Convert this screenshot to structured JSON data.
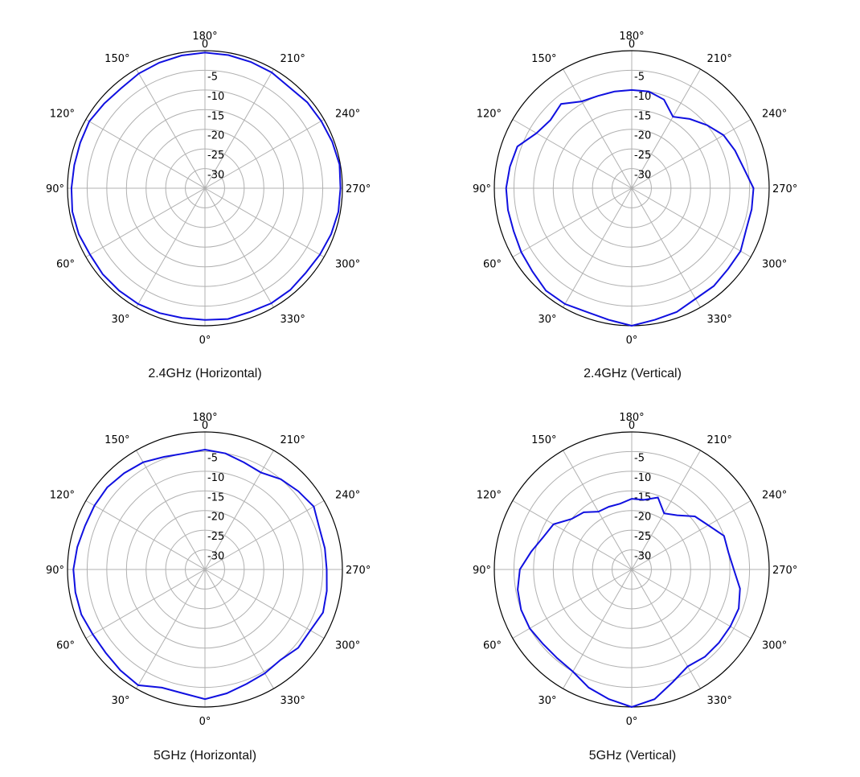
{
  "chart_data": [
    {
      "type": "polar",
      "title": "2.4GHz (Horizontal)",
      "angle_unit": "deg",
      "zero_direction": "bottom",
      "angle_direction": "clockwise",
      "r_scale_labels": [
        "0",
        "-5",
        "-10",
        "-15",
        "-20",
        "-25",
        "-30"
      ],
      "r_min": -35,
      "r_max": 0,
      "angle_ticks": [
        "0°",
        "30°",
        "60°",
        "90°",
        "120°",
        "150°",
        "180°",
        "210°",
        "240°",
        "270°",
        "300°",
        "330°"
      ],
      "grid": true,
      "line_color": "#1010e0",
      "series": [
        {
          "angles": [
            0,
            10,
            20,
            30,
            40,
            50,
            60,
            70,
            80,
            90,
            100,
            110,
            120,
            130,
            140,
            150,
            160,
            170,
            180,
            190,
            200,
            210,
            220,
            230,
            240,
            250,
            260,
            270,
            280,
            290,
            300,
            310,
            320,
            330,
            340,
            350
          ],
          "values": [
            -1.5,
            -1.5,
            -1.2,
            -1.0,
            -1.0,
            -1.0,
            -1.2,
            -0.8,
            -0.7,
            -1.0,
            -1.2,
            -1.2,
            -1.0,
            -1.5,
            -1.8,
            -1.3,
            -1.0,
            -0.7,
            -0.5,
            -0.6,
            -0.8,
            -1.0,
            -1.5,
            -1.0,
            -0.8,
            -0.5,
            -0.2,
            -0.5,
            -0.5,
            -0.8,
            -1.2,
            -1.5,
            -1.2,
            -1.2,
            -1.5,
            -1.2
          ]
        }
      ]
    },
    {
      "type": "polar",
      "title": "2.4GHz (Vertical)",
      "angle_unit": "deg",
      "zero_direction": "bottom",
      "angle_direction": "clockwise",
      "r_scale_labels": [
        "0",
        "-5",
        "-10",
        "-15",
        "-20",
        "-25",
        "-30"
      ],
      "r_min": -35,
      "r_max": 0,
      "angle_ticks": [
        "0°",
        "30°",
        "60°",
        "90°",
        "120°",
        "150°",
        "180°",
        "210°",
        "240°",
        "270°",
        "300°",
        "330°"
      ],
      "grid": true,
      "line_color": "#1010e0",
      "series": [
        {
          "angles": [
            0,
            10,
            20,
            30,
            40,
            50,
            60,
            70,
            80,
            90,
            100,
            110,
            120,
            130,
            140,
            150,
            160,
            170,
            180,
            190,
            200,
            210,
            220,
            230,
            240,
            250,
            260,
            270,
            280,
            290,
            300,
            310,
            320,
            330,
            340,
            350
          ],
          "values": [
            0,
            -1,
            -1.5,
            -1,
            -1,
            -2,
            -2.5,
            -3,
            -3,
            -3,
            -3.5,
            -4,
            -7,
            -8,
            -7,
            -9.5,
            -10,
            -10,
            -10,
            -10,
            -11,
            -14,
            -12,
            -10,
            -8,
            -7,
            -6,
            -4,
            -4,
            -4,
            -3,
            -3,
            -2.5,
            -2.5,
            -1.5,
            -1
          ]
        }
      ]
    },
    {
      "type": "polar",
      "title": "5GHz (Horizontal)",
      "angle_unit": "deg",
      "zero_direction": "bottom",
      "angle_direction": "clockwise",
      "r_scale_labels": [
        "0",
        "-5",
        "-10",
        "-15",
        "-20",
        "-25",
        "-30"
      ],
      "r_min": -35,
      "r_max": 0,
      "angle_ticks": [
        "0°",
        "30°",
        "60°",
        "90°",
        "120°",
        "150°",
        "180°",
        "210°",
        "240°",
        "270°",
        "300°",
        "330°"
      ],
      "grid": true,
      "line_color": "#1010e0",
      "series": [
        {
          "angles": [
            0,
            10,
            20,
            30,
            40,
            50,
            60,
            70,
            80,
            90,
            100,
            110,
            120,
            130,
            140,
            150,
            160,
            170,
            180,
            190,
            200,
            210,
            220,
            230,
            240,
            250,
            260,
            270,
            280,
            290,
            300,
            310,
            320,
            330,
            340,
            350
          ],
          "values": [
            -2,
            -3,
            -3,
            -1,
            -1.5,
            -2,
            -2,
            -1.5,
            -1.5,
            -1.5,
            -2,
            -2.5,
            -2.5,
            -2.5,
            -3,
            -3.5,
            -4.5,
            -5,
            -4.5,
            -5,
            -6,
            -6.5,
            -5,
            -4,
            -3,
            -4,
            -4,
            -4,
            -3.5,
            -3,
            -4,
            -4,
            -5,
            -4.5,
            -4,
            -3
          ]
        }
      ]
    },
    {
      "type": "polar",
      "title": "5GHz (Vertical)",
      "angle_unit": "deg",
      "zero_direction": "bottom",
      "angle_direction": "clockwise",
      "r_scale_labels": [
        "0",
        "-5",
        "-10",
        "-15",
        "-20",
        "-25",
        "-30"
      ],
      "r_min": -35,
      "r_max": 0,
      "angle_ticks": [
        "0°",
        "30°",
        "60°",
        "90°",
        "120°",
        "150°",
        "180°",
        "210°",
        "240°",
        "270°",
        "300°",
        "330°"
      ],
      "grid": true,
      "line_color": "#1010e0",
      "series": [
        {
          "angles": [
            0,
            10,
            20,
            30,
            40,
            50,
            60,
            70,
            80,
            90,
            100,
            110,
            120,
            130,
            140,
            150,
            160,
            170,
            180,
            190,
            200,
            210,
            220,
            230,
            240,
            250,
            260,
            270,
            280,
            290,
            300,
            310,
            320,
            330,
            340,
            350
          ],
          "values": [
            0,
            -1.5,
            -3,
            -5,
            -5.5,
            -5.5,
            -5,
            -5,
            -5.5,
            -6.5,
            -9,
            -11,
            -12,
            -15,
            -16,
            -18,
            -18,
            -18,
            -17,
            -17,
            -15.5,
            -18.5,
            -17,
            -14,
            -12.5,
            -10,
            -10,
            -9,
            -7,
            -6,
            -6,
            -6,
            -6,
            -6.5,
            -4.5,
            -1.5
          ]
        }
      ]
    }
  ]
}
